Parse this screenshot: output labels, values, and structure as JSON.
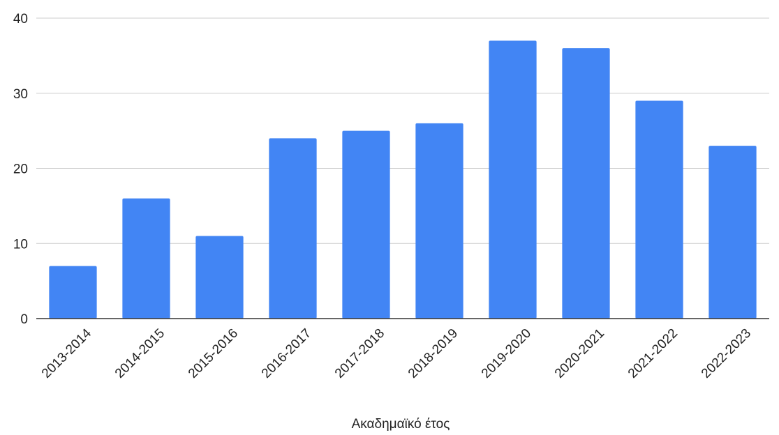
{
  "chart_data": {
    "type": "bar",
    "title": "",
    "xlabel": "Ακαδημαϊκό έτος",
    "ylabel": "",
    "categories": [
      "2013-2014",
      "2014-2015",
      "2015-2016",
      "2016-2017",
      "2017-2018",
      "2018-2019",
      "2019-2020",
      "2020-2021",
      "2021-2022",
      "2022-2023"
    ],
    "values": [
      7,
      16,
      11,
      24,
      25,
      26,
      37,
      36,
      29,
      23
    ],
    "ylim": [
      0,
      40
    ],
    "yticks": [
      "0",
      "10",
      "20",
      "30",
      "40"
    ],
    "grid": true,
    "legend": "none",
    "colors": {
      "bar": "#4285f4",
      "grid": "#cccccc",
      "axis": "#333333",
      "text": "#222222"
    }
  }
}
